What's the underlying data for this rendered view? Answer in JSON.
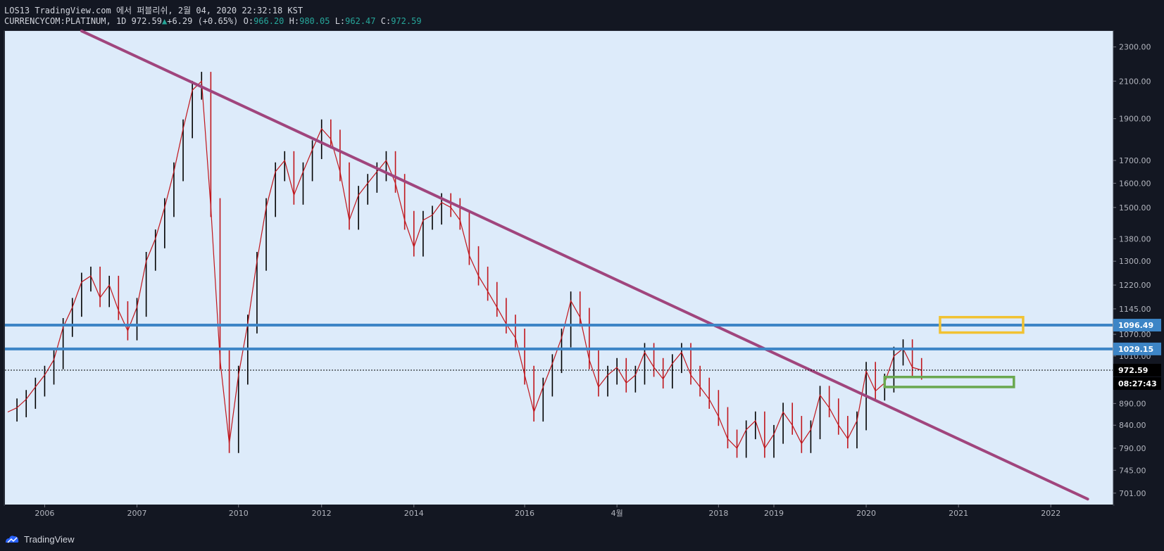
{
  "header": {
    "line1": "LOS13 TradingView.com 에서 퍼블리쉬, 2월 04, 2020 22:32:18 KST",
    "symbol": "CURRENCYCOM:PLATINUM, 1D",
    "last": "972.59",
    "change": "+6.29 (+0.65%)",
    "o_label": "O:",
    "o": "966.20",
    "h_label": "H:",
    "h": "980.05",
    "l_label": "L:",
    "l": "962.47",
    "c_label": "C:",
    "c": "972.59"
  },
  "footer": {
    "brand": "TradingView"
  },
  "colors": {
    "background": "#ddebfa",
    "trendline": "#a0457d",
    "hline": "#3d85c6",
    "yellow_box": "#f1c232",
    "green_box": "#6aa84f",
    "candle_up": "#000000",
    "candle_down": "#c0161c"
  },
  "chart_data": {
    "type": "line",
    "title": "CURRENCYCOM:PLATINUM, 1D",
    "scale": "log",
    "ylim": [
      680,
      2400
    ],
    "x_tick_labels": [
      "2006",
      "2007",
      "2010",
      "2012",
      "2014",
      "2016",
      "4월",
      "2018",
      "2019",
      "2020",
      "2021",
      "2022"
    ],
    "y_tick_labels": [
      "2300.00",
      "2100.00",
      "1900.00",
      "1700.00",
      "1600.00",
      "1500.00",
      "1380.00",
      "1300.00",
      "1220.00",
      "1145.00",
      "1070.00",
      "1010.00",
      "890.00",
      "840.00",
      "790.00",
      "745.00",
      "701.00"
    ],
    "y_ticks": [
      2300,
      2100,
      1900,
      1700,
      1600,
      1500,
      1380,
      1300,
      1220,
      1145,
      1070,
      1010,
      890,
      840,
      790,
      745,
      701
    ],
    "price_series": {
      "name": "PLATINUM",
      "values": [
        870,
        880,
        900,
        930,
        960,
        1000,
        1090,
        1150,
        1230,
        1250,
        1180,
        1220,
        1140,
        1080,
        1150,
        1300,
        1380,
        1500,
        1650,
        1850,
        2050,
        2100,
        1500,
        1000,
        800,
        960,
        1100,
        1300,
        1500,
        1650,
        1700,
        1550,
        1650,
        1750,
        1850,
        1800,
        1650,
        1450,
        1550,
        1600,
        1650,
        1700,
        1600,
        1450,
        1350,
        1450,
        1470,
        1520,
        1500,
        1450,
        1320,
        1250,
        1200,
        1150,
        1100,
        1060,
        960,
        870,
        930,
        990,
        1060,
        1170,
        1120,
        1000,
        930,
        960,
        980,
        940,
        960,
        1020,
        980,
        950,
        990,
        1020,
        960,
        930,
        900,
        860,
        810,
        790,
        830,
        850,
        790,
        820,
        870,
        840,
        800,
        830,
        910,
        880,
        840,
        810,
        850,
        970,
        920,
        940,
        1010,
        1030,
        980,
        972.59
      ],
      "x_tick_index": [
        4,
        14,
        25,
        34,
        44,
        56,
        66,
        77,
        83,
        93,
        103,
        113
      ]
    },
    "levels": [
      {
        "label": "1096.49",
        "value": 1096.49
      },
      {
        "label": "1029.15",
        "value": 1029.15
      }
    ],
    "current_price": {
      "label": "972.59",
      "value": 972.59,
      "countdown": "08:27:43"
    },
    "trendline": {
      "from": {
        "index": 8,
        "value": 2400
      },
      "to": {
        "index": 117,
        "value": 690
      }
    },
    "zones": [
      {
        "name": "resistance-zone",
        "start_index": 101,
        "end_index": 110,
        "top": 1120,
        "bottom": 1075
      },
      {
        "name": "support-zone",
        "start_index": 95,
        "end_index": 109,
        "top": 955,
        "bottom": 930
      }
    ]
  }
}
